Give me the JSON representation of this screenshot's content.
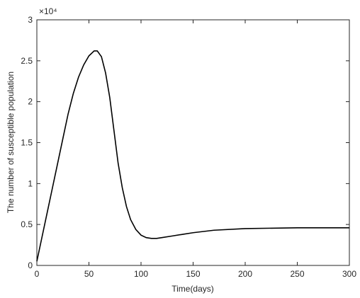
{
  "chart_data": {
    "type": "line",
    "x_label": "Time(days)",
    "y_label": "The number of susceptible population",
    "y_multiplier_label": "×10⁴",
    "x": [
      0,
      5,
      10,
      15,
      20,
      25,
      30,
      35,
      40,
      45,
      50,
      55,
      58,
      62,
      66,
      70,
      74,
      78,
      82,
      86,
      90,
      95,
      100,
      105,
      110,
      115,
      120,
      130,
      140,
      150,
      170,
      200,
      250,
      300
    ],
    "series": [
      {
        "color": "#000000",
        "values": [
          0.05,
          0.35,
          0.65,
          0.95,
          1.25,
          1.55,
          1.85,
          2.1,
          2.3,
          2.45,
          2.56,
          2.62,
          2.62,
          2.55,
          2.35,
          2.05,
          1.65,
          1.25,
          0.95,
          0.72,
          0.56,
          0.44,
          0.37,
          0.34,
          0.33,
          0.33,
          0.34,
          0.36,
          0.38,
          0.4,
          0.43,
          0.45,
          0.46,
          0.46
        ]
      }
    ],
    "xlim": [
      0,
      300
    ],
    "xticks": [
      0,
      50,
      100,
      150,
      200,
      250,
      300
    ],
    "ylim": [
      0,
      3
    ],
    "yticks": [
      0,
      0.5,
      1,
      1.5,
      2,
      2.5,
      3
    ],
    "grid": false
  }
}
